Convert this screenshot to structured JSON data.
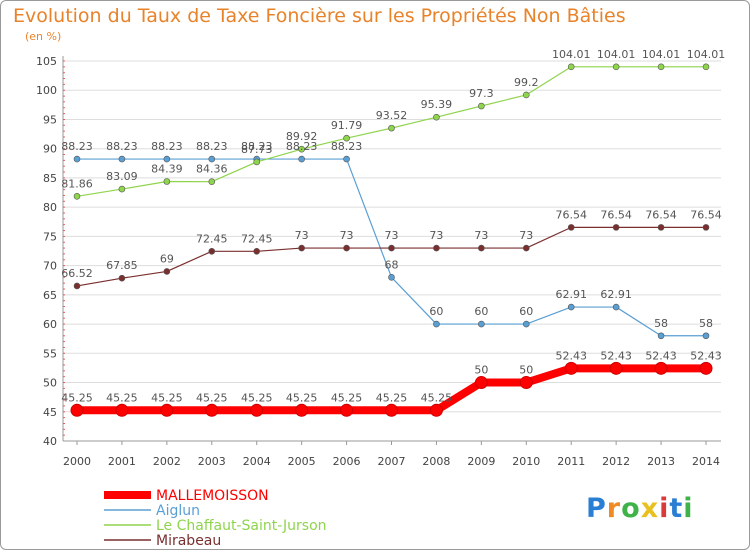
{
  "title": "Evolution du Taux de Taxe Foncière sur les Propriétés Non Bâties",
  "unit_label": "(en %)",
  "chart_data": {
    "type": "line",
    "title": "Evolution du Taux de Taxe Foncière sur les Propriétés Non Bâties",
    "ylabel": "(en %)",
    "xlabel": "",
    "x": [
      2000,
      2001,
      2002,
      2003,
      2004,
      2005,
      2006,
      2007,
      2008,
      2009,
      2010,
      2011,
      2012,
      2013,
      2014
    ],
    "ylim": [
      40,
      105
    ],
    "yticks": [
      40,
      45,
      50,
      55,
      60,
      65,
      70,
      75,
      80,
      85,
      90,
      95,
      100,
      105
    ],
    "grid": "horizontal",
    "legend": "bottom-left",
    "series": [
      {
        "name": "MALLEMOISSON",
        "color": "#ff0000",
        "labels": [
          "45.25",
          "45.25",
          "45.25",
          "45.25",
          "45.25",
          "45.25",
          "45.25",
          "45.25",
          "45.25",
          "50",
          "50",
          "52.43",
          "52.43",
          "52.43",
          "52.43"
        ],
        "values": [
          45.25,
          45.25,
          45.25,
          45.25,
          45.25,
          45.25,
          45.25,
          45.25,
          45.25,
          50,
          50,
          52.43,
          52.43,
          52.43,
          52.43
        ]
      },
      {
        "name": "Aiglun",
        "color": "#5a9fd4",
        "labels": [
          "88.23",
          "88.23",
          "88.23",
          "88.23",
          "88.23",
          "88.23",
          "88.23",
          "68",
          "60",
          "60",
          "60",
          "62.91",
          "62.91",
          "58",
          "58"
        ],
        "values": [
          88.23,
          88.23,
          88.23,
          88.23,
          88.23,
          88.23,
          88.23,
          68,
          60,
          60,
          60,
          62.91,
          62.91,
          58,
          58
        ]
      },
      {
        "name": "Le Chaffaut-Saint-Jurson",
        "color": "#8fd44d",
        "labels": [
          "81.86",
          "83.09",
          "84.39",
          "84.36",
          "87.73",
          "89.92",
          "91.79",
          "93.52",
          "95.39",
          "97.3",
          "99.2",
          "104.01",
          "104.01",
          "104.01",
          "104.01"
        ],
        "values": [
          81.86,
          83.09,
          84.39,
          84.36,
          87.73,
          89.92,
          91.79,
          93.52,
          95.39,
          97.3,
          99.2,
          104.01,
          104.01,
          104.01,
          104.01
        ]
      },
      {
        "name": "Mirabeau",
        "color": "#7a2f2f",
        "labels": [
          "66.52",
          "67.85",
          "69",
          "72.45",
          "72.45",
          "73",
          "73",
          "73",
          "73",
          "73",
          "73",
          "76.54",
          "76.54",
          "76.54",
          "76.54"
        ],
        "values": [
          66.52,
          67.85,
          69,
          72.45,
          72.45,
          73,
          73,
          73,
          73,
          73,
          73,
          76.54,
          76.54,
          76.54,
          76.54
        ]
      }
    ]
  },
  "logo": {
    "letters": [
      "P",
      "r",
      "o",
      "x",
      "i",
      "t",
      "i"
    ],
    "colors": [
      "#2a7fd4",
      "#f08a24",
      "#3fb24a",
      "#e8c020",
      "#d93a3a",
      "#2a7fd4",
      "#3fb24a"
    ]
  }
}
